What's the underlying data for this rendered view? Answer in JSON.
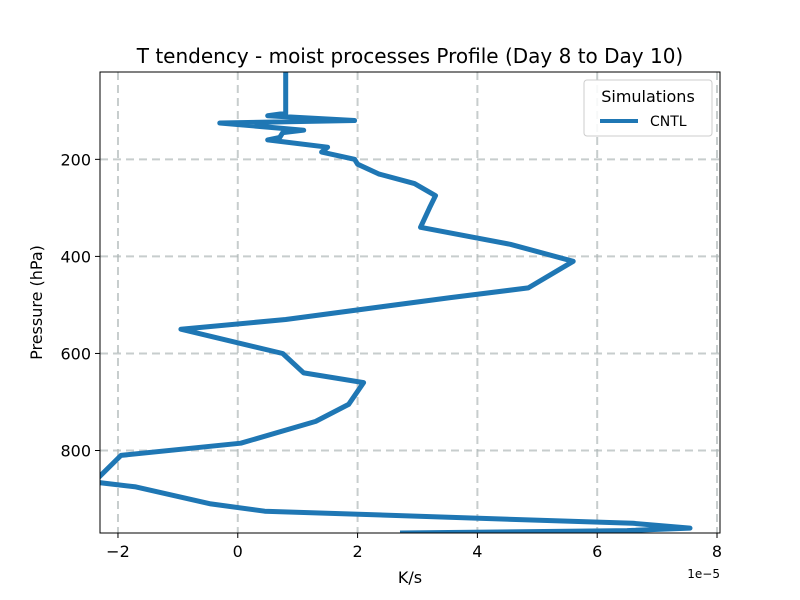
{
  "chart_data": {
    "type": "line",
    "title": "T tendency - moist processes Profile (Day 8 to Day 10)",
    "xlabel": "K/s",
    "ylabel": "Pressure (hPa)",
    "x_offset_label": "1e−5",
    "xlim": [
      -2.3,
      8.05
    ],
    "ylim": [
      970,
      20
    ],
    "y_inverted": true,
    "grid": true,
    "xticks": [
      -2,
      0,
      2,
      4,
      6,
      8
    ],
    "xtick_labels": [
      "−2",
      "0",
      "2",
      "4",
      "6",
      "8"
    ],
    "yticks": [
      200,
      400,
      600,
      800
    ],
    "ytick_labels": [
      "200",
      "400",
      "600",
      "800"
    ],
    "legend": {
      "title": "Simulations",
      "location": "top-right"
    },
    "series": [
      {
        "name": "CNTL",
        "color": "#1f77b4",
        "x": [
          0.8,
          0.8,
          0.8,
          0.5,
          1.95,
          -0.3,
          1.1,
          0.75,
          0.7,
          0.5,
          1.5,
          1.4,
          1.95,
          2.0,
          2.35,
          2.95,
          3.3,
          3.2,
          3.05,
          4.55,
          5.6,
          4.85,
          3.55,
          0.8,
          -0.95,
          0.75,
          1.1,
          2.1,
          1.85,
          1.3,
          0.05,
          -1.95,
          -2.4,
          -1.7,
          -0.45,
          0.45,
          6.6,
          7.55,
          6.5,
          2.75
        ],
        "y": [
          20,
          100,
          105,
          110,
          120,
          125,
          140,
          145,
          155,
          160,
          175,
          185,
          200,
          210,
          230,
          250,
          275,
          300,
          340,
          375,
          410,
          465,
          485,
          530,
          550,
          600,
          640,
          660,
          705,
          740,
          785,
          810,
          865,
          875,
          910,
          925,
          950,
          960,
          965,
          970
        ]
      }
    ]
  }
}
